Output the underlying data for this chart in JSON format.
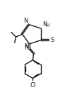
{
  "bg_color": "#ffffff",
  "line_color": "#1a1a1a",
  "line_width": 1.0,
  "font_size": 6.0,
  "font_color": "#1a1a1a",
  "figsize": [
    0.92,
    1.51
  ],
  "dpi": 100,
  "ylim": [
    0.0,
    1.0
  ],
  "xlim": [
    0.0,
    1.0
  ]
}
